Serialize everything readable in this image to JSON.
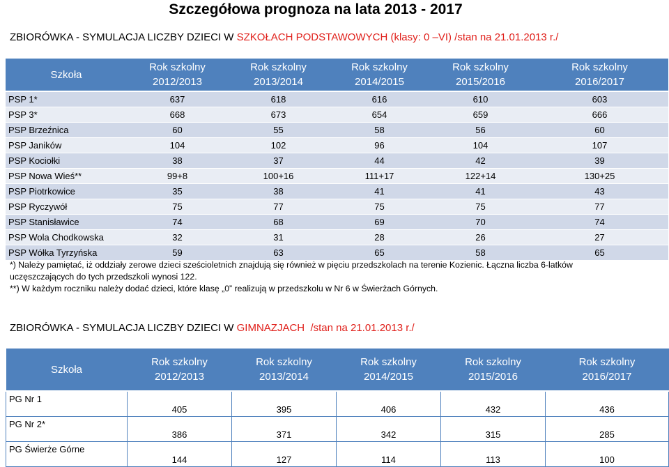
{
  "title": "Szczegółowa prognoza na lata 2013 - 2017",
  "section1": {
    "heading_before": "ZBIORÓWKA - SYMULACJA LICZBY DZIECI W ",
    "heading_red": "SZKOŁACH PODSTAWOWYCH (klasy: 0 –VI) /stan na 21.01.2013 r./",
    "header": {
      "school": "Szkoła",
      "years": [
        {
          "line1": "Rok szkolny",
          "line2": "2012/2013"
        },
        {
          "line1": "Rok szkolny",
          "line2": "2013/2014"
        },
        {
          "line1": "Rok szkolny",
          "line2": "2014/2015"
        },
        {
          "line1": "Rok szkolny",
          "line2": "2015/2016"
        },
        {
          "line1": "Rok szkolny",
          "line2": "2016/2017"
        }
      ]
    },
    "rows": [
      {
        "name": "PSP 1*",
        "values": [
          "637",
          "618",
          "616",
          "610",
          "603"
        ]
      },
      {
        "name": "PSP 3*",
        "values": [
          "668",
          "673",
          "654",
          "659",
          "666"
        ]
      },
      {
        "name": "PSP Brzeźnica",
        "values": [
          "60",
          "55",
          "58",
          "56",
          "60"
        ]
      },
      {
        "name": "PSP Janików",
        "values": [
          "104",
          "102",
          "96",
          "104",
          "107"
        ]
      },
      {
        "name": "PSP Kociołki",
        "values": [
          "38",
          "37",
          "44",
          "42",
          "39"
        ]
      },
      {
        "name": "PSP Nowa Wieś**",
        "values": [
          "99+8",
          "100+16",
          "111+17",
          "122+14",
          "130+25"
        ]
      },
      {
        "name": "PSP Piotrkowice",
        "values": [
          "35",
          "38",
          "41",
          "41",
          "43"
        ]
      },
      {
        "name": "PSP Ryczywół",
        "values": [
          "75",
          "77",
          "75",
          "75",
          "77"
        ]
      },
      {
        "name": "PSP Stanisławice",
        "values": [
          "74",
          "68",
          "69",
          "70",
          "74"
        ]
      },
      {
        "name": "PSP Wola Chodkowska",
        "values": [
          "32",
          "31",
          "28",
          "26",
          "27"
        ]
      },
      {
        "name": "PSP Wółka Tyrzyńska",
        "values": [
          "59",
          "63",
          "65",
          "58",
          "65"
        ]
      }
    ],
    "notes": [
      "*) Należy pamiętać, iż oddziały zerowe dzieci sześcioletnich znajdują się również w pięciu przedszkolach na terenie Kozienic. Łączna liczba 6-latków uczęszczających do tych przedszkoli wynosi 122.",
      "**) W każdym roczniku należy dodać dzieci, które klasę „0” realizują w przedszkolu w Nr 6 w Świerżach Górnych."
    ]
  },
  "section2": {
    "heading_before": "ZBIORÓWKA - SYMULACJA LICZBY DZIECI W ",
    "heading_red": "GIMNAZJACH",
    "heading_after": "  /stan na 21.01.2013 r./",
    "header": {
      "school": "Szkoła",
      "years": [
        {
          "line1": "Rok szkolny",
          "line2": "2012/2013"
        },
        {
          "line1": "Rok szkolny",
          "line2": "2013/2014"
        },
        {
          "line1": "Rok szkolny",
          "line2": "2014/2015"
        },
        {
          "line1": "Rok szkolny",
          "line2": "2015/2016"
        },
        {
          "line1": "Rok szkolny",
          "line2": "2016/2017"
        }
      ]
    },
    "rows": [
      {
        "name": "PG Nr 1",
        "values": [
          "405",
          "395",
          "406",
          "432",
          "436"
        ]
      },
      {
        "name": "PG Nr 2*",
        "values": [
          "386",
          "371",
          "342",
          "315",
          "285"
        ]
      },
      {
        "name": "PG Świerże Górne",
        "values": [
          "144",
          "127",
          "114",
          "113",
          "100"
        ]
      }
    ]
  },
  "colors": {
    "header_blue": "#4f81bd",
    "row_dark": "#d0d8e8",
    "row_light": "#e9edf4",
    "accent_red": "#e0201b"
  }
}
